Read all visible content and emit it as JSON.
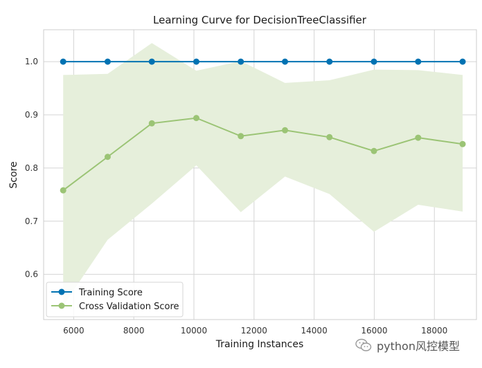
{
  "chart_data": {
    "type": "line",
    "title": "Learning Curve for DecisionTreeClassifier",
    "xlabel": "Training Instances",
    "ylabel": "Score",
    "xlim": [
      5000,
      19400
    ],
    "ylim": [
      0.515,
      1.06
    ],
    "xticks": [
      6000,
      8000,
      10000,
      12000,
      14000,
      16000,
      18000
    ],
    "yticks": [
      0.6,
      0.7,
      0.8,
      0.9,
      1.0
    ],
    "ytick_labels": [
      "0.6",
      "0.7",
      "0.8",
      "0.9",
      "1.0"
    ],
    "grid": true,
    "legend_position": "lower-left",
    "x": [
      5650,
      7130,
      8600,
      10080,
      11560,
      13030,
      14510,
      15990,
      17460,
      18940
    ],
    "series": [
      {
        "name": "Training Score",
        "color": "#0072b2",
        "values": [
          1.0,
          1.0,
          1.0,
          1.0,
          1.0,
          1.0,
          1.0,
          1.0,
          1.0,
          1.0
        ],
        "band_upper": [
          1.0,
          1.0,
          1.0,
          1.0,
          1.0,
          1.0,
          1.0,
          1.0,
          1.0,
          1.0
        ],
        "band_lower": [
          1.0,
          1.0,
          1.0,
          1.0,
          1.0,
          1.0,
          1.0,
          1.0,
          1.0,
          1.0
        ]
      },
      {
        "name": "Cross Validation Score",
        "color": "#9bc475",
        "band_color": "#e6efdb",
        "values": [
          0.758,
          0.821,
          0.884,
          0.894,
          0.86,
          0.871,
          0.858,
          0.832,
          0.857,
          0.845
        ],
        "band_upper": [
          0.975,
          0.977,
          1.035,
          0.983,
          1.001,
          0.96,
          0.965,
          0.985,
          0.984,
          0.975
        ],
        "band_lower": [
          0.541,
          0.665,
          0.733,
          0.805,
          0.717,
          0.784,
          0.751,
          0.68,
          0.731,
          0.718
        ]
      }
    ]
  },
  "watermark": {
    "text": "python风控模型",
    "icon": "wechat-icon"
  }
}
